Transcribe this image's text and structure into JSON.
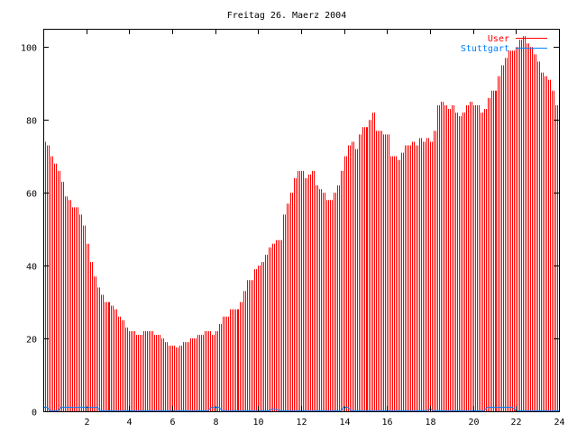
{
  "chart_data": {
    "type": "bar",
    "title": "Freitag 26. Maerz 2004",
    "xlabel": "",
    "ylabel": "",
    "xlim": [
      0,
      24
    ],
    "ylim": [
      0,
      105
    ],
    "x_step_hours": 0.1666667,
    "xticks": [
      2,
      4,
      6,
      8,
      10,
      12,
      14,
      16,
      18,
      20,
      22,
      24
    ],
    "yticks": [
      0,
      20,
      40,
      60,
      80,
      100
    ],
    "legend_position": "top-right",
    "series": [
      {
        "name": "User",
        "style": "impulses",
        "color": "#ff0000",
        "values": [
          74,
          73,
          70,
          68,
          66,
          63,
          59,
          58,
          56,
          56,
          54,
          51,
          46,
          41,
          37,
          34,
          32,
          30,
          30,
          29,
          28,
          26,
          25,
          23,
          22,
          22,
          21,
          21,
          22,
          22,
          22,
          21,
          21,
          20,
          19,
          18,
          18,
          17.5,
          18,
          19,
          19,
          20,
          20,
          21,
          21,
          22,
          22,
          21,
          22,
          24,
          26,
          26,
          28,
          28,
          28,
          30,
          33,
          36,
          36,
          39,
          40,
          41,
          43,
          45,
          46,
          47,
          47,
          54,
          57,
          60,
          64,
          66,
          66,
          64,
          65,
          66,
          62,
          61,
          60,
          58,
          58,
          60,
          62,
          66,
          70,
          73,
          74,
          72,
          76,
          78,
          78,
          80,
          82,
          77,
          77,
          76,
          76,
          70,
          70,
          69,
          71,
          73,
          73,
          74,
          73,
          75,
          74,
          75,
          74,
          77,
          84,
          85,
          84,
          83,
          84,
          82,
          81,
          82,
          84,
          85,
          84,
          84,
          82,
          83,
          86,
          88,
          88,
          92,
          95,
          97,
          99,
          99,
          100,
          102,
          103,
          101,
          100,
          98,
          96,
          93,
          92,
          91,
          88,
          84,
          81
        ]
      },
      {
        "name": "Stuttgart",
        "style": "lines",
        "color": "#0080ff",
        "values": [
          1,
          1,
          0,
          0,
          0,
          1,
          1,
          1,
          1,
          1,
          1,
          1,
          1,
          1,
          1,
          1,
          0,
          0,
          0,
          0,
          0,
          0,
          0,
          0,
          0,
          0,
          0,
          0,
          0,
          0,
          0,
          0,
          0,
          0,
          0,
          0,
          0,
          0,
          0,
          0,
          0,
          0,
          0,
          0,
          0,
          0,
          0,
          1,
          1,
          1,
          0,
          0,
          0,
          0,
          0,
          0,
          0,
          0,
          0,
          0,
          0,
          0,
          0,
          0,
          0.5,
          0.5,
          0,
          0,
          0,
          0,
          0,
          0,
          0,
          0,
          0,
          0,
          0,
          0,
          0,
          0,
          0,
          0,
          0,
          0,
          1,
          1,
          0,
          0,
          0,
          0,
          0,
          0,
          0,
          0,
          0,
          0,
          0,
          0,
          0,
          0,
          0,
          0,
          0,
          0,
          0,
          0,
          0,
          0,
          0.5,
          0,
          0,
          0,
          0,
          0,
          0,
          0,
          0,
          0,
          0,
          0,
          0,
          0,
          0,
          0,
          1,
          1,
          1,
          1,
          1,
          1,
          1,
          1,
          0,
          0,
          0,
          0,
          0,
          0,
          0,
          0,
          0,
          0,
          0,
          0,
          0
        ]
      }
    ]
  }
}
